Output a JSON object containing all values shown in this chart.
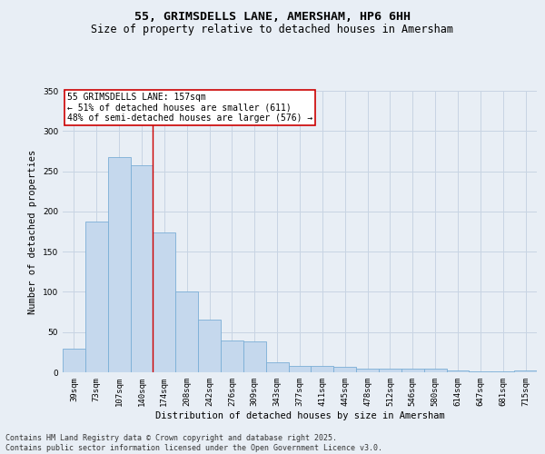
{
  "title": "55, GRIMSDELLS LANE, AMERSHAM, HP6 6HH",
  "subtitle": "Size of property relative to detached houses in Amersham",
  "xlabel": "Distribution of detached houses by size in Amersham",
  "ylabel": "Number of detached properties",
  "categories": [
    "39sqm",
    "73sqm",
    "107sqm",
    "140sqm",
    "174sqm",
    "208sqm",
    "242sqm",
    "276sqm",
    "309sqm",
    "343sqm",
    "377sqm",
    "411sqm",
    "445sqm",
    "478sqm",
    "512sqm",
    "546sqm",
    "580sqm",
    "614sqm",
    "647sqm",
    "681sqm",
    "715sqm"
  ],
  "values": [
    29,
    187,
    268,
    257,
    174,
    100,
    65,
    40,
    38,
    12,
    8,
    8,
    7,
    5,
    4,
    5,
    4,
    2,
    1,
    1,
    2
  ],
  "bar_color": "#c5d8ed",
  "bar_edge_color": "#7aaed6",
  "grid_color": "#c8d4e3",
  "background_color": "#e8eef5",
  "vline_x_idx": 3,
  "vline_color": "#cc0000",
  "annotation_text": "55 GRIMSDELLS LANE: 157sqm\n← 51% of detached houses are smaller (611)\n48% of semi-detached houses are larger (576) →",
  "annotation_box_color": "#ffffff",
  "annotation_box_edge": "#cc0000",
  "ylim": [
    0,
    350
  ],
  "yticks": [
    0,
    50,
    100,
    150,
    200,
    250,
    300,
    350
  ],
  "footer_line1": "Contains HM Land Registry data © Crown copyright and database right 2025.",
  "footer_line2": "Contains public sector information licensed under the Open Government Licence v3.0.",
  "title_fontsize": 9.5,
  "subtitle_fontsize": 8.5,
  "axis_label_fontsize": 7.5,
  "tick_fontsize": 6.5,
  "annotation_fontsize": 7,
  "footer_fontsize": 6
}
